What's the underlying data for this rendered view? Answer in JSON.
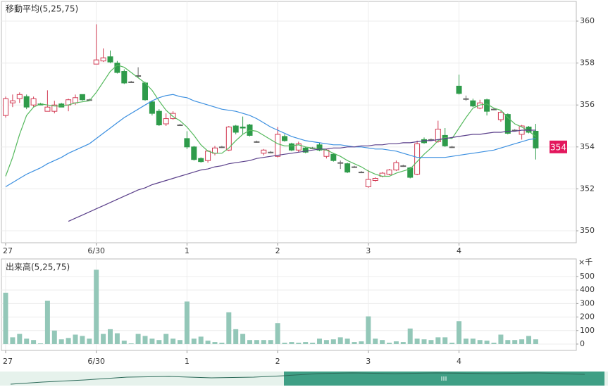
{
  "chart_data": [
    {
      "type": "candlestick",
      "title": "移動平均(5,25,75)",
      "categories": [
        "27",
        null,
        null,
        null,
        null,
        null,
        null,
        null,
        null,
        null,
        null,
        null,
        null,
        "6/30",
        null,
        null,
        null,
        null,
        null,
        null,
        null,
        null,
        null,
        null,
        null,
        null,
        "1",
        null,
        null,
        null,
        null,
        null,
        null,
        null,
        null,
        null,
        null,
        null,
        null,
        "2",
        null,
        null,
        null,
        null,
        null,
        null,
        null,
        null,
        null,
        null,
        null,
        null,
        "3",
        null,
        null,
        null,
        null,
        null,
        null,
        null,
        null,
        null,
        null,
        null,
        null,
        "4",
        null,
        null,
        null,
        null,
        null,
        null,
        null,
        null,
        null,
        null,
        null
      ],
      "open": [
        355.5,
        356.1,
        356.3,
        356.4,
        356.0,
        356.05,
        355.7,
        355.7,
        356.05,
        356.0,
        356.1,
        356.5,
        356.25,
        357.95,
        358.1,
        358.3,
        358.0,
        357.6,
        357.1,
        357.4,
        357.05,
        356.15,
        355.7,
        355.1,
        355.35,
        355.05,
        354.4,
        354.0,
        353.45,
        353.35,
        353.7,
        354.0,
        353.85,
        355.0,
        354.95,
        355.05,
        354.25,
        353.7,
        353.75,
        353.55,
        354.5,
        354.15,
        353.85,
        353.95,
        353.95,
        354.1,
        353.55,
        353.65,
        353.25,
        353.2,
        353.05,
        352.8,
        352.1,
        352.4,
        352.6,
        352.7,
        352.9,
        353.1,
        353.0,
        352.7,
        354.35,
        354.35,
        354.25,
        354.55,
        354.0,
        356.9,
        356.3,
        356.2,
        355.85,
        356.25,
        355.8,
        355.3,
        355.55,
        354.8,
        354.6,
        354.95,
        354.75
      ],
      "high": [
        356.4,
        356.5,
        356.6,
        356.5,
        356.4,
        356.1,
        356.7,
        356.2,
        356.1,
        356.3,
        356.5,
        356.5,
        356.3,
        359.85,
        358.7,
        358.6,
        358.1,
        357.7,
        357.15,
        357.8,
        357.1,
        356.2,
        355.8,
        355.6,
        355.7,
        355.1,
        354.75,
        354.05,
        353.5,
        353.85,
        354.05,
        354.05,
        355.0,
        355.05,
        355.45,
        355.1,
        354.3,
        353.9,
        353.8,
        354.95,
        354.6,
        354.2,
        354.25,
        354.0,
        354.0,
        354.2,
        353.9,
        353.7,
        353.35,
        353.25,
        353.1,
        352.85,
        352.9,
        352.55,
        352.8,
        352.95,
        353.35,
        353.15,
        353.05,
        354.3,
        354.45,
        354.4,
        355.25,
        354.9,
        354.05,
        357.45,
        356.45,
        356.3,
        356.25,
        356.3,
        355.85,
        355.7,
        355.6,
        354.85,
        355.05,
        355.0,
        355.1
      ],
      "low": [
        355.4,
        355.9,
        356.1,
        355.8,
        355.9,
        356.0,
        355.7,
        355.6,
        355.9,
        355.7,
        356.0,
        356.2,
        356.2,
        357.95,
        358.05,
        358.0,
        357.5,
        357.0,
        357.05,
        357.3,
        356.2,
        355.5,
        355.0,
        355.0,
        355.3,
        355.0,
        353.9,
        353.35,
        353.25,
        353.25,
        353.6,
        353.95,
        353.8,
        354.6,
        354.6,
        354.5,
        354.2,
        353.6,
        353.7,
        353.5,
        354.25,
        353.8,
        353.75,
        353.7,
        353.9,
        353.8,
        353.45,
        353.3,
        352.95,
        352.75,
        353.0,
        352.75,
        352.05,
        352.35,
        352.55,
        352.65,
        352.85,
        353.05,
        352.5,
        352.65,
        354.15,
        354.3,
        354.2,
        354.0,
        353.95,
        356.5,
        356.2,
        355.9,
        355.8,
        355.5,
        355.75,
        355.2,
        354.6,
        354.75,
        354.35,
        354.65,
        353.4
      ],
      "close": [
        356.3,
        356.2,
        356.5,
        355.9,
        356.3,
        356.0,
        355.9,
        356.0,
        355.9,
        356.25,
        356.35,
        356.25,
        356.25,
        358.15,
        358.25,
        358.05,
        357.55,
        357.05,
        357.1,
        357.4,
        356.25,
        355.6,
        355.05,
        355.35,
        355.6,
        355.05,
        354.0,
        353.4,
        353.3,
        353.8,
        353.95,
        354.0,
        354.95,
        354.7,
        354.9,
        354.55,
        354.25,
        353.85,
        353.75,
        354.6,
        354.3,
        353.85,
        354.15,
        353.75,
        353.95,
        353.85,
        353.85,
        353.35,
        353.25,
        352.8,
        353.05,
        352.8,
        352.45,
        352.5,
        352.75,
        352.9,
        353.25,
        353.1,
        352.55,
        354.15,
        354.2,
        354.35,
        354.85,
        354.05,
        354.0,
        356.55,
        356.3,
        355.95,
        356.1,
        355.7,
        355.8,
        355.65,
        354.65,
        354.8,
        355.0,
        354.7,
        353.95
      ],
      "up_color": "#d23a53",
      "down_color": "#2e9b4a",
      "series": [
        {
          "name": "5",
          "color": "#55b95d",
          "values": [
            352.6,
            353.5,
            354.6,
            355.5,
            355.9,
            356.05,
            356.0,
            355.95,
            355.95,
            356.0,
            356.1,
            356.15,
            356.2,
            356.6,
            357.1,
            357.6,
            357.9,
            357.8,
            357.55,
            357.3,
            357.05,
            356.7,
            356.2,
            355.75,
            355.45,
            355.25,
            354.95,
            354.55,
            354.1,
            353.8,
            353.7,
            353.7,
            353.95,
            354.3,
            354.6,
            354.8,
            354.75,
            354.55,
            354.35,
            354.15,
            354.05,
            354.05,
            354.1,
            354.0,
            353.95,
            353.9,
            353.85,
            353.7,
            353.55,
            353.35,
            353.2,
            353.05,
            352.85,
            352.7,
            352.6,
            352.6,
            352.75,
            352.85,
            352.95,
            353.3,
            353.65,
            353.95,
            354.3,
            354.45,
            354.4,
            354.9,
            355.4,
            355.85,
            356.0,
            356.05,
            355.85,
            355.75,
            355.4,
            355.1,
            354.95,
            354.75,
            354.5
          ]
        },
        {
          "name": "25",
          "color": "#3b8fe0",
          "values": [
            352.1,
            352.3,
            352.5,
            352.7,
            352.85,
            353.0,
            353.2,
            353.35,
            353.5,
            353.7,
            353.85,
            354.0,
            354.15,
            354.4,
            354.65,
            354.9,
            355.15,
            355.4,
            355.6,
            355.8,
            356.0,
            356.2,
            356.35,
            356.45,
            356.5,
            356.4,
            356.35,
            356.2,
            356.1,
            356.0,
            355.9,
            355.8,
            355.75,
            355.7,
            355.6,
            355.5,
            355.35,
            355.15,
            354.95,
            354.8,
            354.65,
            354.5,
            354.4,
            354.3,
            354.25,
            354.2,
            354.15,
            354.1,
            354.1,
            354.05,
            354.0,
            354.0,
            353.95,
            353.9,
            353.9,
            353.85,
            353.8,
            353.7,
            353.6,
            353.5,
            353.5,
            353.5,
            353.5,
            353.5,
            353.55,
            353.6,
            353.65,
            353.7,
            353.75,
            353.8,
            353.85,
            353.95,
            354.05,
            354.15,
            354.25,
            354.35,
            354.4
          ]
        },
        {
          "name": "75",
          "color": "#5a3f8a",
          "values": [
            null,
            null,
            null,
            null,
            null,
            null,
            null,
            null,
            null,
            350.45,
            350.6,
            350.75,
            350.9,
            351.05,
            351.2,
            351.35,
            351.5,
            351.65,
            351.8,
            351.95,
            352.05,
            352.2,
            352.3,
            352.4,
            352.5,
            352.6,
            352.7,
            352.8,
            352.9,
            352.95,
            353.05,
            353.1,
            353.2,
            353.25,
            353.3,
            353.35,
            353.45,
            353.5,
            353.55,
            353.6,
            353.65,
            353.7,
            353.75,
            353.8,
            353.85,
            353.9,
            353.9,
            353.95,
            353.95,
            354.0,
            354.0,
            354.05,
            354.05,
            354.1,
            354.1,
            354.15,
            354.15,
            354.2,
            354.2,
            354.25,
            354.3,
            354.3,
            354.35,
            354.4,
            354.45,
            354.5,
            354.55,
            354.6,
            354.6,
            354.65,
            354.7,
            354.7,
            354.75,
            354.75,
            354.8,
            354.8,
            354.8
          ]
        }
      ],
      "last_price": 354,
      "last_price_color": "#e3175d",
      "ylim": [
        349.43,
        360.94
      ],
      "yticks": [
        350,
        352,
        354,
        356,
        358,
        360
      ],
      "grid": true
    },
    {
      "type": "bar",
      "title": "出来高(5,25,75)",
      "unit": "×千",
      "categories": [
        "27",
        null,
        null,
        null,
        null,
        null,
        null,
        null,
        null,
        null,
        null,
        null,
        null,
        "6/30",
        null,
        null,
        null,
        null,
        null,
        null,
        null,
        null,
        null,
        null,
        null,
        null,
        "1",
        null,
        null,
        null,
        null,
        null,
        null,
        null,
        null,
        null,
        null,
        null,
        null,
        "2",
        null,
        null,
        null,
        null,
        null,
        null,
        null,
        null,
        null,
        null,
        null,
        null,
        "3",
        null,
        null,
        null,
        null,
        null,
        null,
        null,
        null,
        null,
        null,
        null,
        null,
        "4",
        null,
        null,
        null,
        null,
        null,
        null,
        null,
        null,
        null,
        null,
        null
      ],
      "values": [
        380,
        50,
        75,
        40,
        30,
        5,
        320,
        100,
        35,
        45,
        70,
        60,
        40,
        550,
        75,
        110,
        80,
        25,
        5,
        75,
        60,
        40,
        30,
        75,
        40,
        30,
        315,
        40,
        55,
        25,
        15,
        10,
        235,
        110,
        75,
        30,
        30,
        30,
        30,
        155,
        10,
        15,
        10,
        15,
        10,
        40,
        30,
        35,
        50,
        40,
        15,
        20,
        205,
        40,
        30,
        10,
        20,
        15,
        115,
        40,
        35,
        30,
        50,
        50,
        10,
        170,
        40,
        40,
        30,
        25,
        10,
        70,
        30,
        30,
        35,
        60,
        35
      ],
      "color": "#93c7b8",
      "ylim": [
        -47,
        630
      ],
      "yticks": [
        0,
        100,
        200,
        300,
        400,
        500
      ],
      "grid": true
    }
  ]
}
